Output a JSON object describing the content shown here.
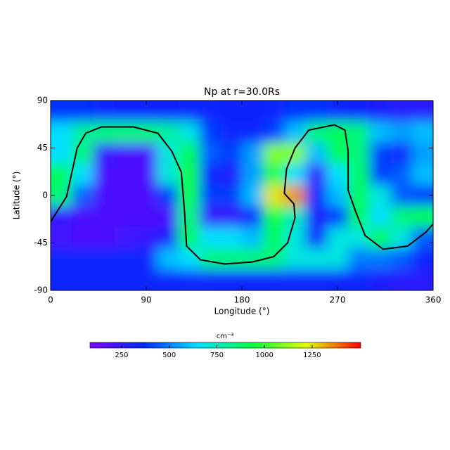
{
  "chart_data": {
    "type": "heatmap",
    "title": "Np at r=30.0Rs",
    "xlabel": "Longitude (°)",
    "ylabel": "Latitude (°)",
    "x": [
      10,
      30,
      50,
      70,
      90,
      110,
      130,
      150,
      170,
      190,
      210,
      230,
      250,
      270,
      290,
      310,
      330,
      350
    ],
    "y": [
      80,
      60,
      40,
      20,
      0,
      -20,
      -40,
      -60,
      -80
    ],
    "z": [
      [
        380,
        380,
        350,
        330,
        330,
        330,
        350,
        350,
        330,
        330,
        350,
        380,
        380,
        350,
        330,
        300,
        280,
        280
      ],
      [
        650,
        800,
        850,
        850,
        850,
        800,
        700,
        400,
        350,
        350,
        400,
        600,
        850,
        900,
        850,
        600,
        550,
        600
      ],
      [
        650,
        850,
        250,
        200,
        200,
        700,
        900,
        450,
        400,
        550,
        1100,
        1100,
        600,
        900,
        850,
        400,
        350,
        550
      ],
      [
        900,
        650,
        200,
        200,
        200,
        700,
        950,
        350,
        300,
        550,
        950,
        650,
        250,
        650,
        900,
        400,
        450,
        600
      ],
      [
        850,
        450,
        200,
        200,
        200,
        400,
        950,
        400,
        400,
        600,
        1250,
        1350,
        350,
        600,
        900,
        700,
        450,
        400
      ],
      [
        250,
        200,
        200,
        200,
        200,
        200,
        850,
        250,
        250,
        350,
        950,
        750,
        300,
        400,
        900,
        650,
        850,
        900
      ],
      [
        220,
        200,
        200,
        220,
        250,
        300,
        900,
        650,
        650,
        600,
        900,
        700,
        350,
        700,
        700,
        900,
        700,
        450
      ],
      [
        350,
        350,
        350,
        350,
        350,
        600,
        650,
        850,
        850,
        850,
        850,
        700,
        700,
        700,
        500,
        500,
        450,
        350
      ],
      [
        350,
        350,
        350,
        350,
        350,
        350,
        350,
        350,
        350,
        350,
        350,
        350,
        350,
        350,
        350,
        300,
        280,
        280
      ]
    ],
    "xlim": [
      0,
      360
    ],
    "ylim": [
      -90,
      90
    ],
    "xticks": [
      0,
      90,
      180,
      270,
      360
    ],
    "yticks": [
      -90,
      -45,
      0,
      45,
      90
    ],
    "colormap": [
      "#7f00ff",
      "#0028ff",
      "#00e0ff",
      "#00ff40",
      "#e0ff00",
      "#ff0000"
    ],
    "colorbar": {
      "label": "cm⁻³",
      "lim": [
        84,
        1505
      ],
      "ticks": [
        250,
        500,
        750,
        1000,
        1250
      ]
    },
    "contour": {
      "color": "#000000",
      "x": [
        0,
        15,
        25,
        33,
        48,
        78,
        101,
        114,
        123,
        126,
        128,
        141,
        164,
        190,
        210,
        223,
        230,
        229,
        220,
        222,
        230,
        243,
        267,
        277,
        280,
        280,
        287,
        296,
        313,
        336,
        353,
        360
      ],
      "y": [
        -25,
        -1,
        45,
        59,
        65,
        65,
        59,
        42,
        22,
        -15,
        -48,
        -61,
        -65,
        -63,
        -58,
        -45,
        -21,
        -8,
        2,
        25,
        45,
        62,
        67,
        62,
        42,
        5,
        -15,
        -38,
        -51,
        -48,
        -35,
        -27
      ]
    }
  }
}
